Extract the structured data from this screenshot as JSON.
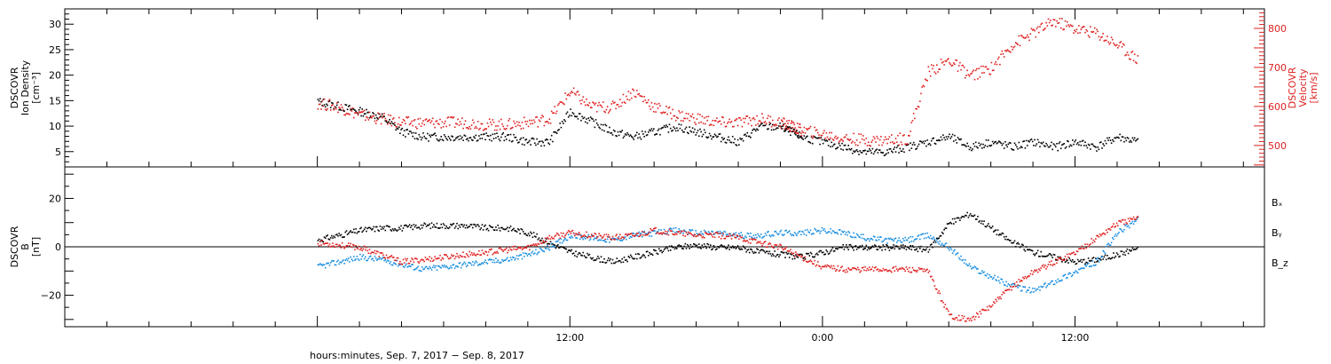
{
  "chart_data": [
    {
      "type": "scatter",
      "panel": "top",
      "left_axis_label": [
        "DSCOVR",
        "Ion Density",
        "[cm⁻³]"
      ],
      "right_axis_label": [
        "DSCOVR",
        "Velocity",
        "[km/s]"
      ],
      "left_ylim": [
        2,
        33
      ],
      "left_ticks": [
        5,
        10,
        15,
        20,
        25,
        30
      ],
      "left_tick_labels": [
        "5",
        "10",
        "15",
        "20",
        "25",
        "30"
      ],
      "right_ylim": [
        445,
        850
      ],
      "right_ticks": [
        500,
        600,
        700,
        800
      ],
      "right_tick_labels": [
        "500",
        "600",
        "700",
        "800"
      ],
      "series": [
        {
          "color": "#000000",
          "axis": "left",
          "x": [
            0,
            1,
            2,
            3,
            4,
            5,
            6,
            7,
            8,
            9,
            10,
            11,
            12,
            13,
            14,
            15,
            16,
            17,
            18,
            19,
            20,
            21,
            22,
            22.5,
            23,
            24,
            25,
            26,
            27,
            28,
            29,
            30,
            31,
            32,
            33,
            34,
            35,
            36,
            37,
            38,
            39
          ],
          "y": [
            15,
            14,
            13,
            12,
            9,
            8,
            8,
            8,
            8,
            8,
            7,
            7,
            13,
            11,
            9,
            8,
            9,
            10,
            9,
            8,
            7,
            10,
            10,
            9,
            8,
            7,
            6,
            5,
            5,
            6,
            7,
            8,
            6,
            7,
            6,
            7,
            6,
            7,
            6,
            8,
            7
          ]
        },
        {
          "color": "#e02020",
          "axis": "right",
          "x": [
            0,
            1,
            2,
            3,
            4,
            5,
            6,
            7,
            8,
            9,
            10,
            11,
            12,
            13,
            14,
            15,
            16,
            17,
            18,
            19,
            20,
            21,
            22,
            22.5,
            23,
            24,
            25,
            26,
            27,
            28,
            29,
            30,
            31,
            32,
            33,
            34,
            35,
            36,
            37,
            38,
            39
          ],
          "y": [
            610,
            600,
            580,
            570,
            560,
            560,
            560,
            560,
            555,
            555,
            560,
            570,
            640,
            600,
            600,
            640,
            600,
            580,
            570,
            560,
            560,
            570,
            560,
            550,
            540,
            530,
            520,
            515,
            515,
            520,
            690,
            720,
            680,
            700,
            760,
            790,
            820,
            800,
            790,
            760,
            720
          ]
        }
      ]
    },
    {
      "type": "scatter",
      "panel": "bottom",
      "left_axis_label": [
        "DSCOVR",
        "B",
        "[nT]"
      ],
      "left_ylim": [
        -33,
        33
      ],
      "left_ticks": [
        -20,
        0,
        20
      ],
      "left_tick_labels": [
        "−20",
        "0",
        "20"
      ],
      "legend": [
        {
          "label": "Bₓ",
          "color": "#000000"
        },
        {
          "label": "Bᵧ",
          "color": "#1a8fe0"
        },
        {
          "label": "B_z",
          "color": "#e02020"
        }
      ],
      "series": [
        {
          "name": "Bₓ",
          "color": "#000000",
          "x": [
            0,
            1,
            2,
            3,
            4,
            5,
            6,
            7,
            8,
            9,
            10,
            11,
            12,
            13,
            14,
            15,
            16,
            17,
            18,
            19,
            20,
            21,
            22,
            23,
            24,
            25,
            26,
            27,
            28,
            29,
            30,
            31,
            32,
            33,
            34,
            35,
            36,
            37,
            38,
            39
          ],
          "y": [
            3,
            5,
            7,
            8,
            8,
            9,
            9,
            9,
            8,
            8,
            6,
            2,
            -2,
            -4,
            -6,
            -4,
            -2,
            0,
            1,
            0,
            0,
            -2,
            -3,
            -4,
            -2,
            0,
            0,
            0,
            0,
            -1,
            10,
            14,
            8,
            2,
            -2,
            -4,
            -6,
            -5,
            -3,
            0
          ]
        },
        {
          "name": "Bᵧ",
          "color": "#1a8fe0",
          "x": [
            0,
            1,
            2,
            3,
            4,
            5,
            6,
            7,
            8,
            9,
            10,
            11,
            12,
            13,
            14,
            15,
            16,
            17,
            18,
            19,
            20,
            21,
            22,
            23,
            24,
            25,
            26,
            27,
            28,
            29,
            30,
            31,
            32,
            33,
            34,
            35,
            36,
            37,
            38,
            39
          ],
          "y": [
            -8,
            -6,
            -4,
            -5,
            -7,
            -9,
            -8,
            -7,
            -6,
            -5,
            -3,
            0,
            5,
            4,
            3,
            5,
            6,
            7,
            6,
            6,
            5,
            5,
            6,
            6,
            7,
            6,
            4,
            3,
            3,
            5,
            0,
            -8,
            -12,
            -16,
            -18,
            -14,
            -10,
            -6,
            6,
            12
          ]
        },
        {
          "name": "B_z",
          "color": "#e02020",
          "x": [
            0,
            1,
            2,
            3,
            4,
            5,
            6,
            7,
            8,
            9,
            10,
            11,
            12,
            13,
            14,
            15,
            16,
            17,
            18,
            19,
            20,
            21,
            22,
            23,
            24,
            25,
            26,
            27,
            28,
            29,
            30,
            31,
            32,
            33,
            34,
            35,
            36,
            37,
            38,
            39
          ],
          "y": [
            2,
            1,
            0,
            -3,
            -6,
            -5,
            -4,
            -3,
            -2,
            -1,
            0,
            4,
            6,
            5,
            4,
            5,
            7,
            6,
            5,
            5,
            4,
            2,
            0,
            -4,
            -8,
            -9,
            -9,
            -9,
            -9,
            -10,
            -28,
            -30,
            -24,
            -16,
            -10,
            -6,
            -2,
            4,
            10,
            12
          ]
        }
      ]
    }
  ],
  "x_axis": {
    "title": "hours:minutes, Sep.  7, 2017 − Sep.  8, 2017",
    "range_hours": [
      -12,
      45
    ],
    "major_tick_hours": [
      12,
      24,
      36
    ],
    "major_tick_labels": [
      "12:00",
      "0:00",
      "12:00"
    ]
  }
}
